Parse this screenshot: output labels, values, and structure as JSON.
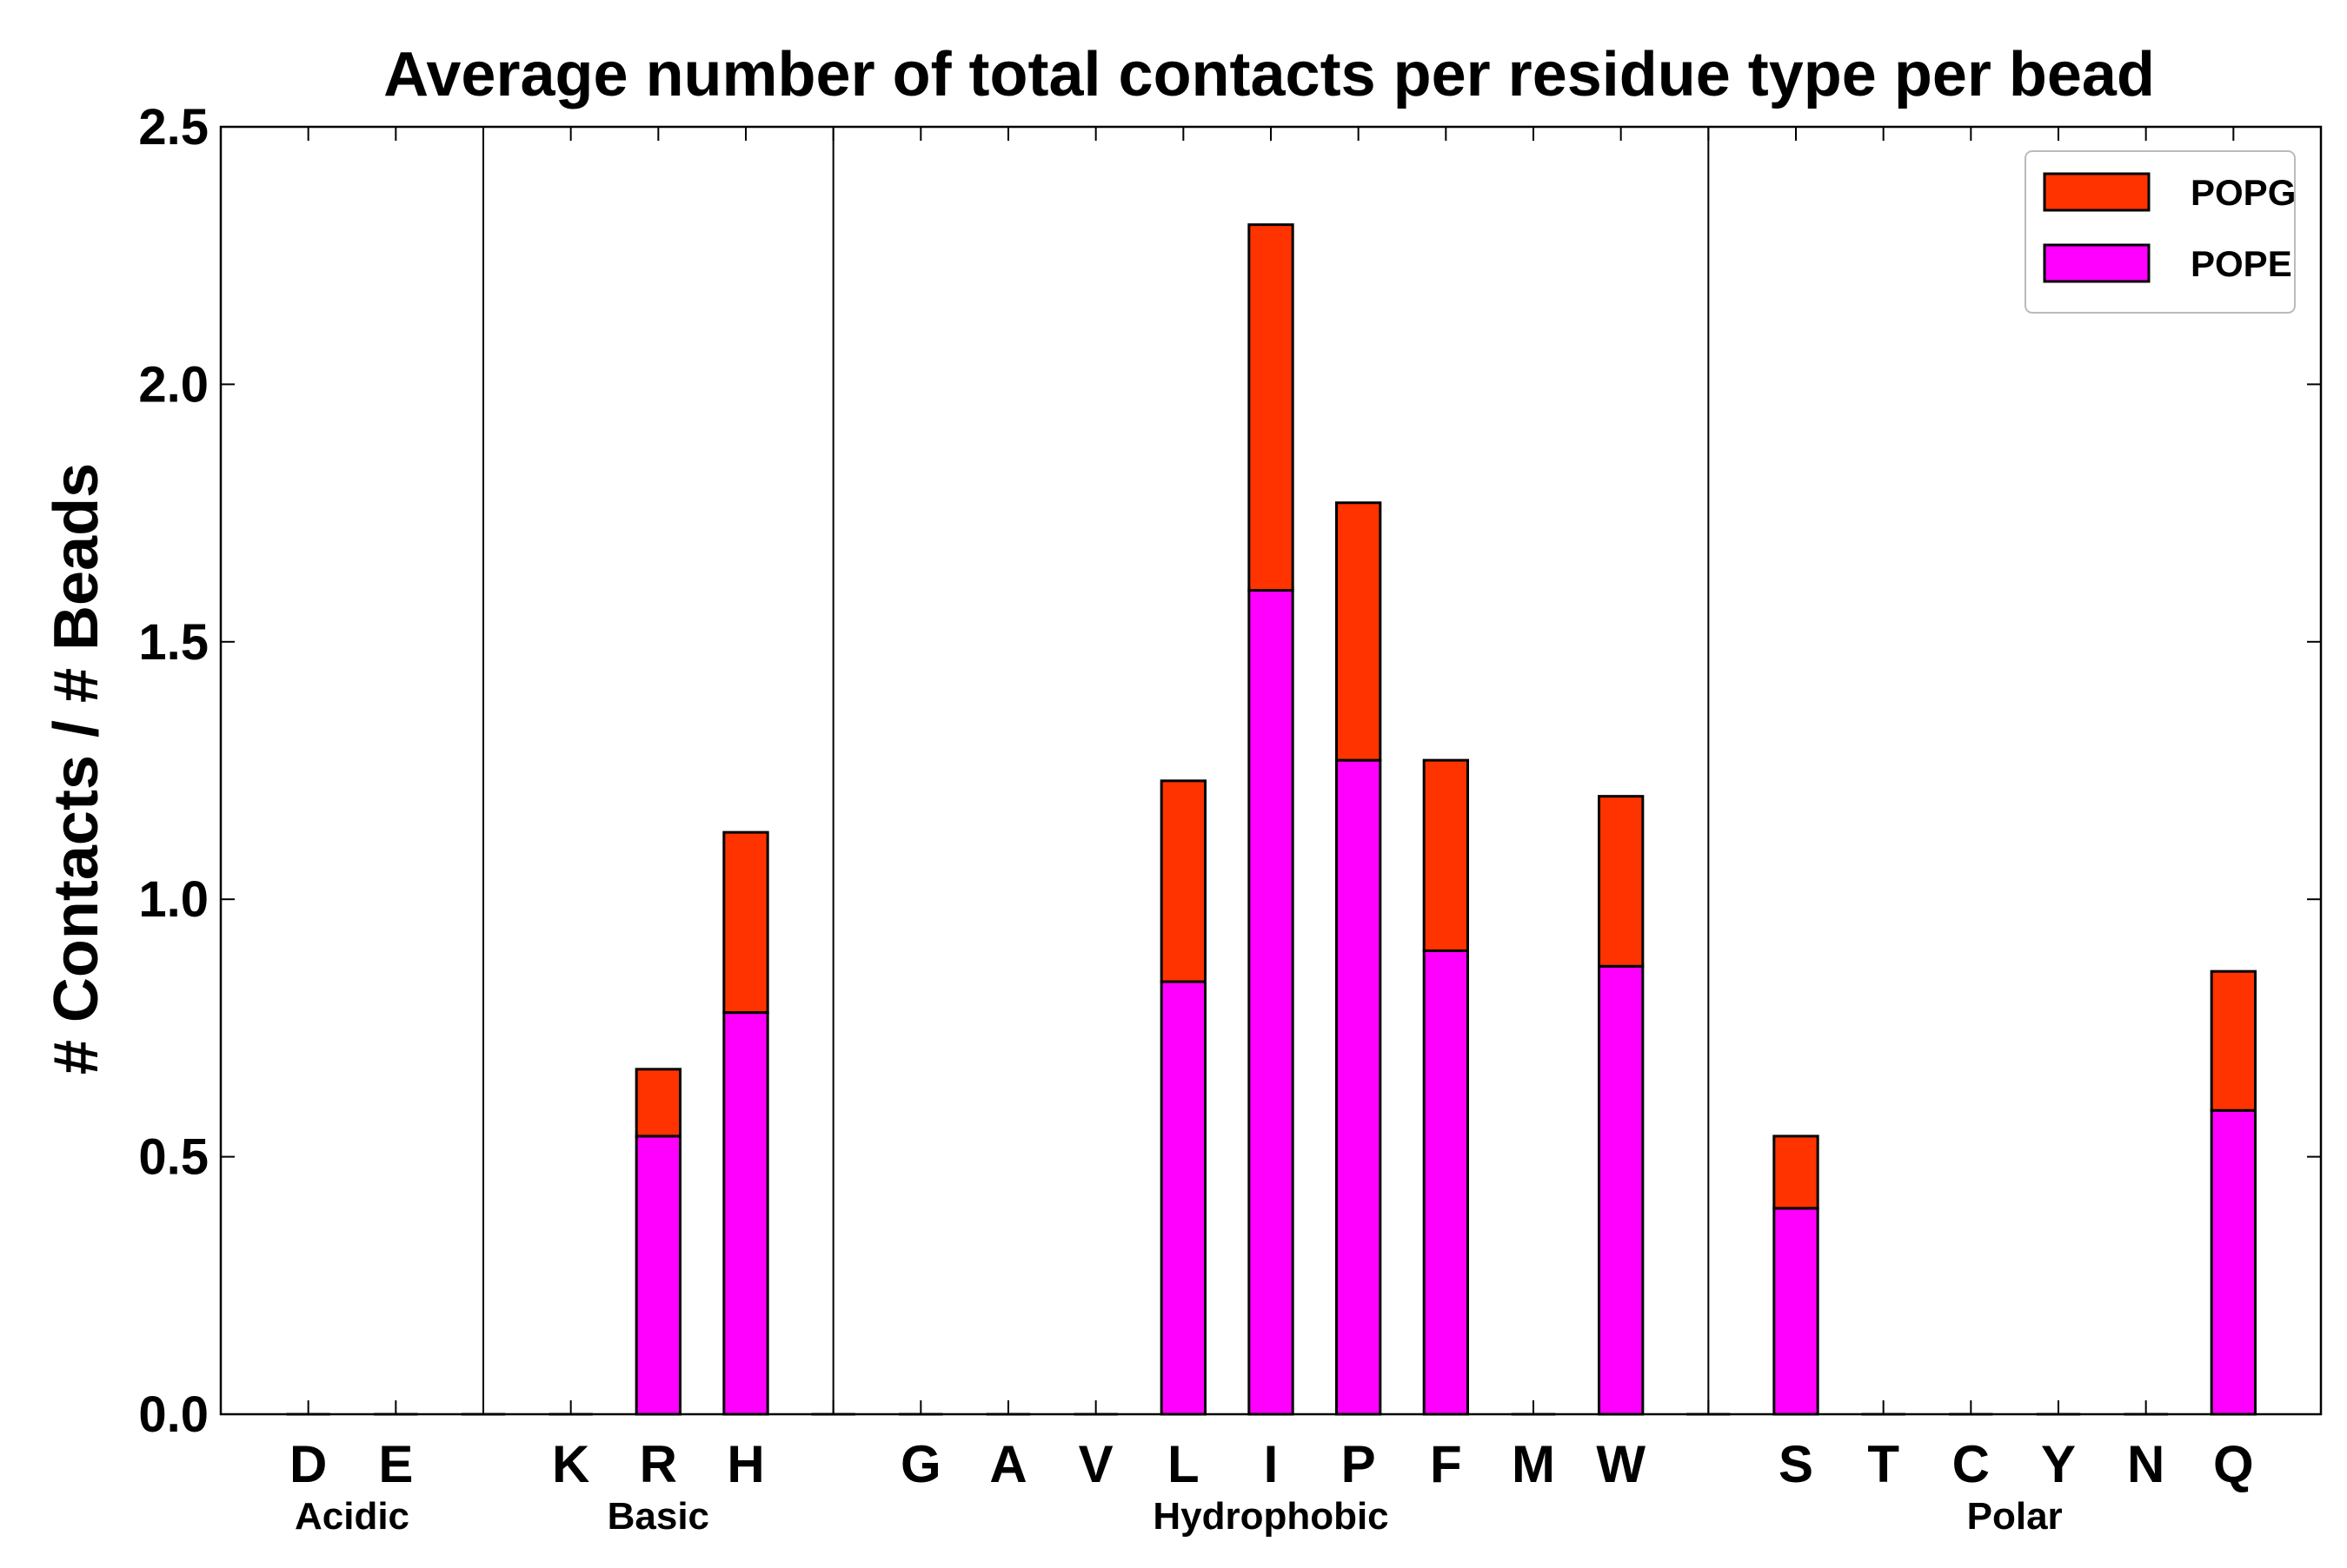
{
  "chart_data": {
    "type": "bar",
    "stacked": true,
    "title": "Average number of total contacts per residue type per bead",
    "xlabel": "",
    "ylabel": "# Contacts / # Beads",
    "ylim": [
      0,
      2.5
    ],
    "yticks": [
      "0.0",
      "0.5",
      "1.0",
      "1.5",
      "2.0",
      "2.5"
    ],
    "grid": false,
    "legend_position": "top-right",
    "categories": [
      "D",
      "E",
      "",
      "K",
      "R",
      "H",
      "",
      "G",
      "A",
      "V",
      "L",
      "I",
      "P",
      "F",
      "M",
      "W",
      "",
      "S",
      "T",
      "C",
      "Y",
      "N",
      "Q"
    ],
    "separators_after_index": [
      1,
      5,
      15
    ],
    "groups": [
      {
        "label": "Acidic",
        "start": 0,
        "end": 1
      },
      {
        "label": "Basic",
        "start": 3,
        "end": 5
      },
      {
        "label": "Hydrophobic",
        "start": 7,
        "end": 15
      },
      {
        "label": "Polar",
        "start": 17,
        "end": 22
      }
    ],
    "series": [
      {
        "name": "POPE",
        "color": "#ff00ff",
        "values": [
          0,
          0,
          0,
          0,
          0.54,
          0.78,
          0,
          0,
          0,
          0,
          0.84,
          1.6,
          1.27,
          0.9,
          0,
          0.87,
          0,
          0.4,
          0,
          0,
          0,
          0,
          0.59
        ]
      },
      {
        "name": "POPG",
        "color": "#ff3300",
        "values": [
          0,
          0,
          0,
          0,
          0.13,
          0.35,
          0,
          0,
          0,
          0,
          0.39,
          0.71,
          0.5,
          0.37,
          0,
          0.33,
          0,
          0.14,
          0,
          0,
          0,
          0,
          0.27
        ]
      }
    ],
    "legend": [
      {
        "name": "POPG",
        "color": "#ff3300"
      },
      {
        "name": "POPE",
        "color": "#ff00ff"
      }
    ]
  }
}
